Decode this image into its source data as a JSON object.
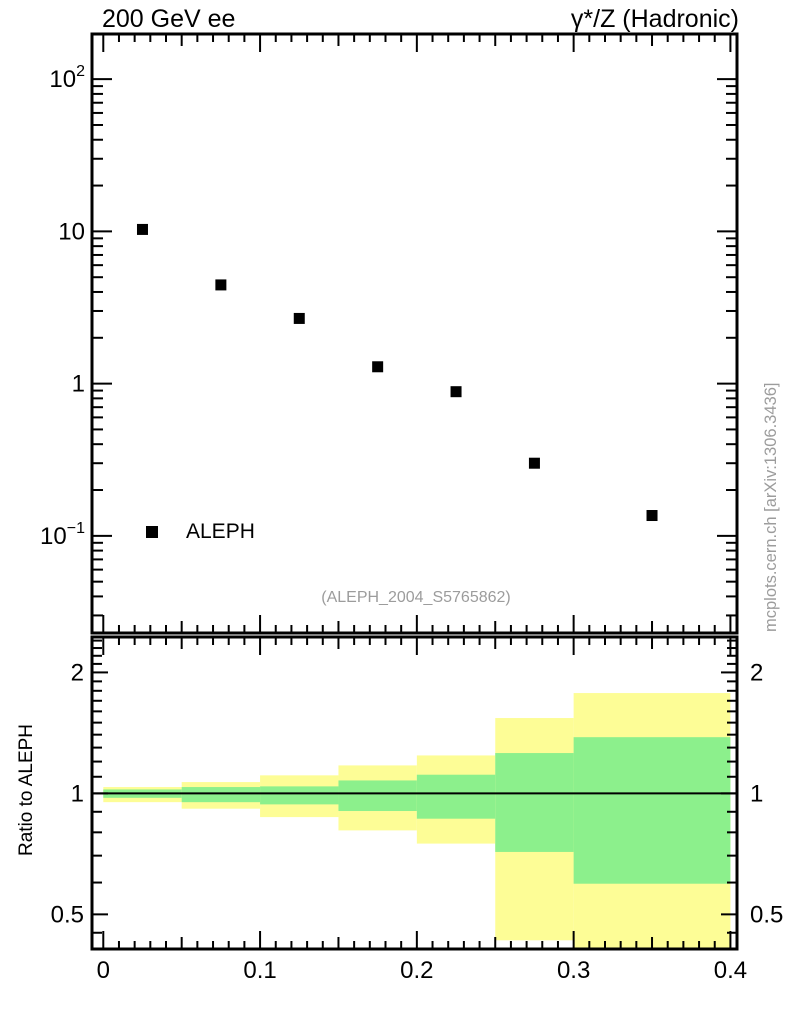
{
  "header": {
    "title_left": "200 GeV ee",
    "title_right": "γ*/Z (Hadronic)"
  },
  "watermark": "(ALEPH_2004_S5765862)",
  "side_text": "mcplots.cern.ch [arXiv:1306.3436]",
  "legend": {
    "label": "ALEPH",
    "marker": "filled-black-square"
  },
  "colors": {
    "band_yellow": "#fdfd96",
    "band_green": "#8cf08c",
    "marker": "#000000",
    "muted_text": "#9c9c9c",
    "axis": "#000000"
  },
  "chart_data": [
    {
      "type": "scatter",
      "panel": "main",
      "series": [
        {
          "name": "ALEPH",
          "marker": "filled-square",
          "x": [
            0.025,
            0.075,
            0.125,
            0.175,
            0.225,
            0.275,
            0.35
          ],
          "y": [
            10.3,
            4.45,
            2.68,
            1.29,
            0.885,
            0.3,
            0.136
          ]
        }
      ],
      "xscale": "linear",
      "yscale": "log",
      "xlim": [
        -0.0072,
        0.4042
      ],
      "ylim": [
        0.023,
        198
      ],
      "grid": false,
      "legend_position": "bottom-left-inside",
      "xticks": {
        "major_step": 0.1,
        "medium_step": 0.05,
        "minor_step": 0.01,
        "labels_shown": false
      },
      "ytick_labels": [
        {
          "value": 100,
          "base": "10",
          "exp": "2"
        },
        {
          "value": 10,
          "base": "10",
          "exp": ""
        },
        {
          "value": 1,
          "base": "1",
          "exp": ""
        },
        {
          "value": 0.1,
          "base": "10",
          "exp": "−1"
        }
      ]
    },
    {
      "type": "band-histogram",
      "panel": "ratio",
      "ylabel": "Ratio to ALEPH",
      "xscale": "linear",
      "yscale": "log",
      "xlim": [
        -0.0072,
        0.4042
      ],
      "ylim": [
        0.41,
        2.45
      ],
      "reference_line": 1,
      "bin_edges": [
        0,
        0.05,
        0.1,
        0.15,
        0.2,
        0.25,
        0.3,
        0.4
      ],
      "bands": {
        "yellow": [
          [
            0.951,
            1.037
          ],
          [
            0.916,
            1.067
          ],
          [
            0.873,
            1.109
          ],
          [
            0.809,
            1.174
          ],
          [
            0.75,
            1.243
          ],
          [
            0.431,
            1.54
          ],
          [
            0.38,
            1.777
          ]
        ],
        "green": [
          [
            0.975,
            1.023
          ],
          [
            0.951,
            1.037
          ],
          [
            0.939,
            1.041
          ],
          [
            0.904,
            1.077
          ],
          [
            0.865,
            1.113
          ],
          [
            0.715,
            1.26
          ],
          [
            0.596,
            1.38
          ]
        ]
      },
      "xtick_labels": [
        {
          "value": 0,
          "label": "0"
        },
        {
          "value": 0.1,
          "label": "0.1"
        },
        {
          "value": 0.2,
          "label": "0.2"
        },
        {
          "value": 0.3,
          "label": "0.3"
        },
        {
          "value": 0.4,
          "label": "0.4"
        }
      ],
      "ytick_labels": [
        {
          "value": 0.5,
          "label": "0.5"
        },
        {
          "value": 1,
          "label": "1"
        },
        {
          "value": 2,
          "label": "2"
        }
      ],
      "ytick_minor": [
        0.45,
        0.6,
        0.7,
        0.8,
        0.9,
        1.1,
        1.2,
        1.3,
        1.4,
        1.5,
        1.6,
        1.7,
        1.8,
        1.9,
        2.1,
        2.2,
        2.3,
        2.4
      ]
    }
  ]
}
